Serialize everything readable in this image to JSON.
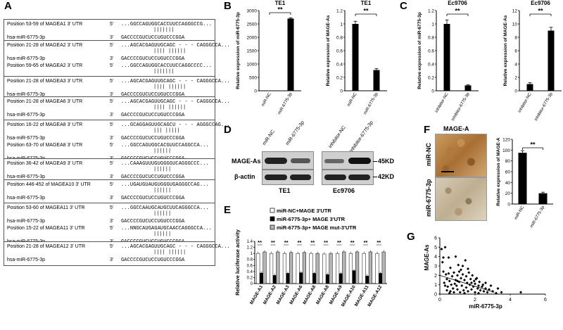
{
  "panel_labels": {
    "A": "A",
    "B": "B",
    "C": "C",
    "D": "D",
    "E": "E",
    "F": "F",
    "G": "G"
  },
  "panel_a": {
    "groups": [
      {
        "rows": [
          {
            "pos": "Position 53-59 of MAGEA1 3' UTR",
            "prime": "5'",
            "seq": "...GGCCAGUGGCACCUUCCAGGGCCG...",
            "bars": "|||||||"
          },
          {
            "pos": "hsa-miR-6775-3p",
            "prime": "3'",
            "seq": "GACCCCGUCUCCUGUCCCGGA"
          }
        ]
      },
      {
        "rows": [
          {
            "pos": "Position 21-28 of MAGEA2 3' UTR",
            "prime": "5'",
            "seq": "...AGCACGAGUUGCAGC - - - CAGGGCCA...",
            "bars": "||||     ||||||"
          },
          {
            "pos": "hsa-miR-6775-3p",
            "prime": "3'",
            "seq": "GACCCCGUCUCCUGUCCCGGA"
          },
          {
            "pos": "Position 59-65 of MAGEA2 3' UTR",
            "prime": "5'",
            "seq": "...GGCCAGUGGCACCUUCCAGGCCCC...",
            "bars": "|||||||"
          },
          {
            "pos": "hsa-miR-6775-3p",
            "prime": "3'",
            "seq": "GACCCCGUCUCCUGUCCCGGA"
          }
        ]
      },
      {
        "rows": [
          {
            "pos": "Position 21-28 of MAGEA3 3' UTR",
            "prime": "5'",
            "seq": "...AGCACGAGUUGCAGC - - - CAGGGCCA...",
            "bars": "||||     ||||||"
          },
          {
            "pos": "hsa-miR-6775-3p",
            "prime": "3'",
            "seq": "GACCCCGUCUCCUGUCCCGGA"
          }
        ]
      },
      {
        "rows": [
          {
            "pos": "Position 21-28 of MAGEA6 3' UTR",
            "prime": "5'",
            "seq": "...AGCACGAGUUGCAGC - - - CAGGGCCA...",
            "bars": "||||     ||||||"
          },
          {
            "pos": "hsa-miR-6775-3p",
            "prime": "3'",
            "seq": "GACCCCGUCUCCUGUCCCGGA"
          }
        ]
      },
      {
        "rows": [
          {
            "pos": "Position 16-22 of MAGEA8 3' UTR",
            "prime": "5'",
            "seq": "...GCAGGAGUUGCAGCU - - - AGGGCCAG...",
            "bars": "|||     |||||"
          },
          {
            "pos": "hsa-miR-6775-3p",
            "prime": "3'",
            "seq": "GACCCCGUCUCCUGUCCCGGA"
          },
          {
            "pos": "Position 63-70 of MAGEA8 3' UTR",
            "prime": "5'",
            "seq": "...GGCCAGUGGCACGUUCCAGGCCA...",
            "bars": "||||||"
          },
          {
            "pos": "hsa-miR-6775-3p",
            "prime": "3'",
            "seq": "GACCCCGUCUCCUGUCCCGGA"
          }
        ]
      },
      {
        "rows": [
          {
            "pos": "Position 36-42 of MAGEA9 3' UTR",
            "prime": "5'",
            "seq": "...CAAAGUUUGUGGGGUCAGGGCCC...",
            "bars": "||||||"
          },
          {
            "pos": "hsa-miR-6775-3p",
            "prime": "3'",
            "seq": "GACCCCGUCUCCUGUCCCGGA"
          }
        ]
      },
      {
        "rows": [
          {
            "pos": "Position 446-452 of MAGEA10 3' UTR",
            "prime": "5'",
            "seq": "...UGAUGUAUGUGGGUGAGGGCCAG...",
            "bars": "||||||"
          },
          {
            "pos": "hsa-miR-6775-3p",
            "prime": "3'",
            "seq": "GACCCCGUCUCCUGUCCCGGA"
          }
        ]
      },
      {
        "rows": [
          {
            "pos": "Position 53-60 of MAGEA11 3' UTR",
            "prime": "5'",
            "seq": "...GGCCAAUGCAUGCUUCAGGGCCA...",
            "bars": "||||||"
          },
          {
            "pos": "hsa-miR-6775-3p",
            "prime": "3'",
            "seq": "GACCCCGUCUCCUGUCCCGGA"
          },
          {
            "pos": "Position 15-22 of MAGEA11 3' UTR",
            "prime": "5'",
            "seq": "...NNGCAUGAGAUGCAACCAGGGCCA...",
            "bars": "||||||"
          },
          {
            "pos": "hsa-miR-6775-3p",
            "prime": "3'",
            "seq": "GACCCCGUCUCCUGUCCCGGA"
          }
        ]
      },
      {
        "rows": [
          {
            "pos": "Position 21-28 of MAGEA12 3' UTR",
            "prime": "5'",
            "seq": "...AGCACGAGUUGCAGC - - - CAGGGCCA...",
            "bars": "||||     ||||||"
          },
          {
            "pos": "hsa-miR-6775-3p",
            "prime": "3'",
            "seq": "GACCCCGUCUCCUGUCCCGGA"
          }
        ]
      }
    ]
  },
  "chart_data": [
    {
      "id": "B1",
      "type": "bar",
      "title": "TE1",
      "ylabel": "Relative expression of miR-6775-3p",
      "categories": [
        "miR-NC",
        "miR-6775-3p"
      ],
      "values": [
        1,
        2700
      ],
      "errors": [
        0,
        30
      ],
      "ylim": [
        0,
        3000
      ],
      "yticks": [
        0,
        500,
        1000,
        1500,
        2000,
        2500,
        3000
      ],
      "ytick_labels": [
        "0",
        "500",
        "1000",
        "1500",
        "2000",
        "2500",
        "3000"
      ],
      "sig": "**"
    },
    {
      "id": "B2",
      "type": "bar",
      "title": "TE1",
      "ylabel": "Relative expression of MAGE-As",
      "categories": [
        "miR-NC",
        "miR-6775-3p"
      ],
      "values": [
        1.0,
        0.31
      ],
      "errors": [
        0.04,
        0.02
      ],
      "ylim": [
        0,
        1.2
      ],
      "yticks": [
        0,
        0.2,
        0.4,
        0.6,
        0.8,
        1,
        1.2
      ],
      "ytick_labels": [
        "0",
        "0.2",
        "0.4",
        "0.6",
        "0.8",
        "1",
        "1.2"
      ],
      "sig": "**"
    },
    {
      "id": "C1",
      "type": "bar",
      "title": "Ec9706",
      "ylabel": "Relative expression of miR-6775-3p",
      "categories": [
        "inhibitor-NC",
        "inhibitor-6775-3p"
      ],
      "values": [
        1.0,
        0.08
      ],
      "errors": [
        0.06,
        0.01
      ],
      "ylim": [
        0,
        1.2
      ],
      "yticks": [
        0,
        0.2,
        0.4,
        0.6,
        0.8,
        1,
        1.2
      ],
      "ytick_labels": [
        "0",
        "0.2",
        "0.4",
        "0.6",
        "0.8",
        "1",
        "1.2"
      ],
      "sig": "**"
    },
    {
      "id": "C2",
      "type": "bar",
      "title": "Ec9706",
      "ylabel": "Relative expression of MAGE-As",
      "categories": [
        "inhibitor-NC",
        "inhibitor-6775-3p"
      ],
      "values": [
        1.0,
        9.0
      ],
      "errors": [
        0.2,
        0.5
      ],
      "ylim": [
        0,
        12
      ],
      "yticks": [
        0,
        2,
        4,
        6,
        8,
        10,
        12
      ],
      "ytick_labels": [
        "0",
        "2",
        "4",
        "6",
        "8",
        "10",
        "12"
      ],
      "sig": "**"
    },
    {
      "id": "E",
      "type": "bar",
      "ylabel": "Relative luciferase activity",
      "categories": [
        "MAGE-A1",
        "MAGE-A2",
        "MAGE-A3",
        "MAGE-A6",
        "MAGE-A8",
        "MAGE-A8",
        "MAGE-A9",
        "MAGE-A10",
        "MAGE-A11",
        "MAGE-A12"
      ],
      "series": [
        {
          "name": "miR-NC+MAGE 3'UTR",
          "color": "#ffffff",
          "values": [
            1.0,
            1.0,
            1.0,
            1.0,
            1.0,
            0.98,
            1.0,
            1.0,
            1.0,
            1.0
          ]
        },
        {
          "name": "miR-6775-3p+ MAGE 3'UTR",
          "color": "#000000",
          "values": [
            0.35,
            0.27,
            0.34,
            0.36,
            0.34,
            0.3,
            0.33,
            0.43,
            0.25,
            0.34
          ]
        },
        {
          "name": "miR-6775-3p+ MAGE mut-3'UTR",
          "color": "#b5b5b5",
          "values": [
            1.05,
            1.05,
            1.03,
            1.03,
            1.0,
            1.0,
            1.05,
            1.05,
            1.05,
            1.05
          ]
        }
      ],
      "ylim": [
        0,
        1.4
      ],
      "yticks": [
        0,
        0.2,
        0.4,
        0.6,
        0.8,
        1,
        1.2,
        1.4
      ],
      "ytick_labels": [
        "0",
        "0.2",
        "0.4",
        "0.6",
        "0.8",
        "1",
        "1.2",
        "1.4"
      ],
      "sig": "**"
    },
    {
      "id": "F",
      "type": "bar",
      "ylabel": "Relative expression of MAGE-A",
      "categories": [
        "miR-NC",
        "miR-6775-3p"
      ],
      "values": [
        95,
        20
      ],
      "errors": [
        4,
        2
      ],
      "ylim": [
        0,
        120
      ],
      "yticks": [
        0,
        20,
        40,
        60,
        80,
        100,
        120
      ],
      "ytick_labels": [
        "0",
        "20",
        "40",
        "60",
        "80",
        "100",
        "120"
      ],
      "sig": "**"
    },
    {
      "id": "G",
      "type": "scatter",
      "xlabel": "miR-6775-3p",
      "ylabel": "MAGE-As",
      "xlim": [
        0,
        6
      ],
      "ylim": [
        0,
        6
      ],
      "xticks": [
        0,
        2,
        4,
        6
      ],
      "yticks": [
        0,
        1,
        2,
        3,
        4,
        5,
        6
      ],
      "points": [
        [
          0.1,
          4.8
        ],
        [
          0.2,
          2.4
        ],
        [
          0.15,
          3.4
        ],
        [
          0.3,
          0.9
        ],
        [
          0.35,
          2.1
        ],
        [
          0.4,
          1.6
        ],
        [
          0.5,
          3.9
        ],
        [
          0.5,
          2.2
        ],
        [
          0.55,
          1.4
        ],
        [
          0.6,
          0.3
        ],
        [
          0.6,
          2.8
        ],
        [
          0.7,
          1.9
        ],
        [
          0.75,
          0.6
        ],
        [
          0.8,
          2.3
        ],
        [
          0.85,
          1.1
        ],
        [
          0.9,
          4.0
        ],
        [
          0.9,
          1.5
        ],
        [
          1.0,
          2.0
        ],
        [
          1.0,
          0.5
        ],
        [
          1.05,
          3.1
        ],
        [
          1.1,
          1.3
        ],
        [
          1.15,
          0.2
        ],
        [
          1.2,
          2.6
        ],
        [
          1.2,
          1.7
        ],
        [
          1.25,
          0.9
        ],
        [
          1.3,
          2.1
        ],
        [
          1.35,
          0.4
        ],
        [
          1.4,
          1.5
        ],
        [
          1.45,
          3.6
        ],
        [
          1.5,
          0.7
        ],
        [
          1.5,
          1.9
        ],
        [
          1.55,
          1.2
        ],
        [
          1.6,
          0.3
        ],
        [
          1.65,
          2.3
        ],
        [
          1.7,
          1.0
        ],
        [
          1.75,
          1.6
        ],
        [
          1.8,
          0.5
        ],
        [
          1.85,
          2.0
        ],
        [
          1.9,
          0.8
        ],
        [
          1.95,
          1.4
        ],
        [
          2.0,
          0.2
        ],
        [
          2.0,
          1.1
        ],
        [
          2.1,
          1.7
        ],
        [
          2.15,
          0.6
        ],
        [
          2.2,
          0.9
        ],
        [
          2.25,
          1.3
        ],
        [
          2.3,
          0.4
        ],
        [
          2.4,
          0.8
        ],
        [
          2.45,
          1.0
        ],
        [
          2.5,
          0.3
        ],
        [
          2.6,
          0.6
        ],
        [
          2.7,
          0.2
        ],
        [
          2.8,
          0.5
        ],
        [
          3.0,
          0.3
        ],
        [
          3.2,
          0.1
        ],
        [
          0.25,
          1.2
        ],
        [
          0.45,
          0.8
        ],
        [
          0.65,
          1.0
        ],
        [
          0.95,
          0.9
        ],
        [
          1.1,
          2.4
        ],
        [
          1.3,
          3.0
        ],
        [
          1.6,
          2.7
        ],
        [
          0.3,
          5.0
        ],
        [
          0.2,
          3.9
        ],
        [
          0.55,
          0.1
        ],
        [
          1.4,
          0.1
        ],
        [
          1.8,
          1.2
        ],
        [
          2.05,
          1.6
        ],
        [
          2.2,
          0.1
        ],
        [
          0.8,
          0.2
        ],
        [
          1.0,
          1.4
        ],
        [
          0.4,
          0.4
        ],
        [
          4.6,
          0.2
        ],
        [
          3.5,
          0.2
        ],
        [
          3.3,
          0.6
        ],
        [
          2.9,
          0.9
        ],
        [
          2.6,
          1.2
        ]
      ],
      "fit": [
        [
          0,
          2.0
        ],
        [
          3.1,
          0.2
        ]
      ]
    }
  ],
  "panel_b": {
    "sig": "**"
  },
  "panel_d": {
    "lane_labels_left": [
      "miR-NC",
      "miR-6775-3p"
    ],
    "lane_labels_right": [
      "inhibitor-NC",
      "inhibitor-6775-3p"
    ],
    "row_labels": [
      "MAGE-As",
      "β-actin"
    ],
    "size_markers": [
      "45KD",
      "42KD"
    ],
    "cell_lines": [
      "TE1",
      "Ec9706"
    ]
  },
  "panel_f": {
    "title": "MAGE-A",
    "row_labels": [
      "miR-NC",
      "miR-6775-3p"
    ]
  }
}
